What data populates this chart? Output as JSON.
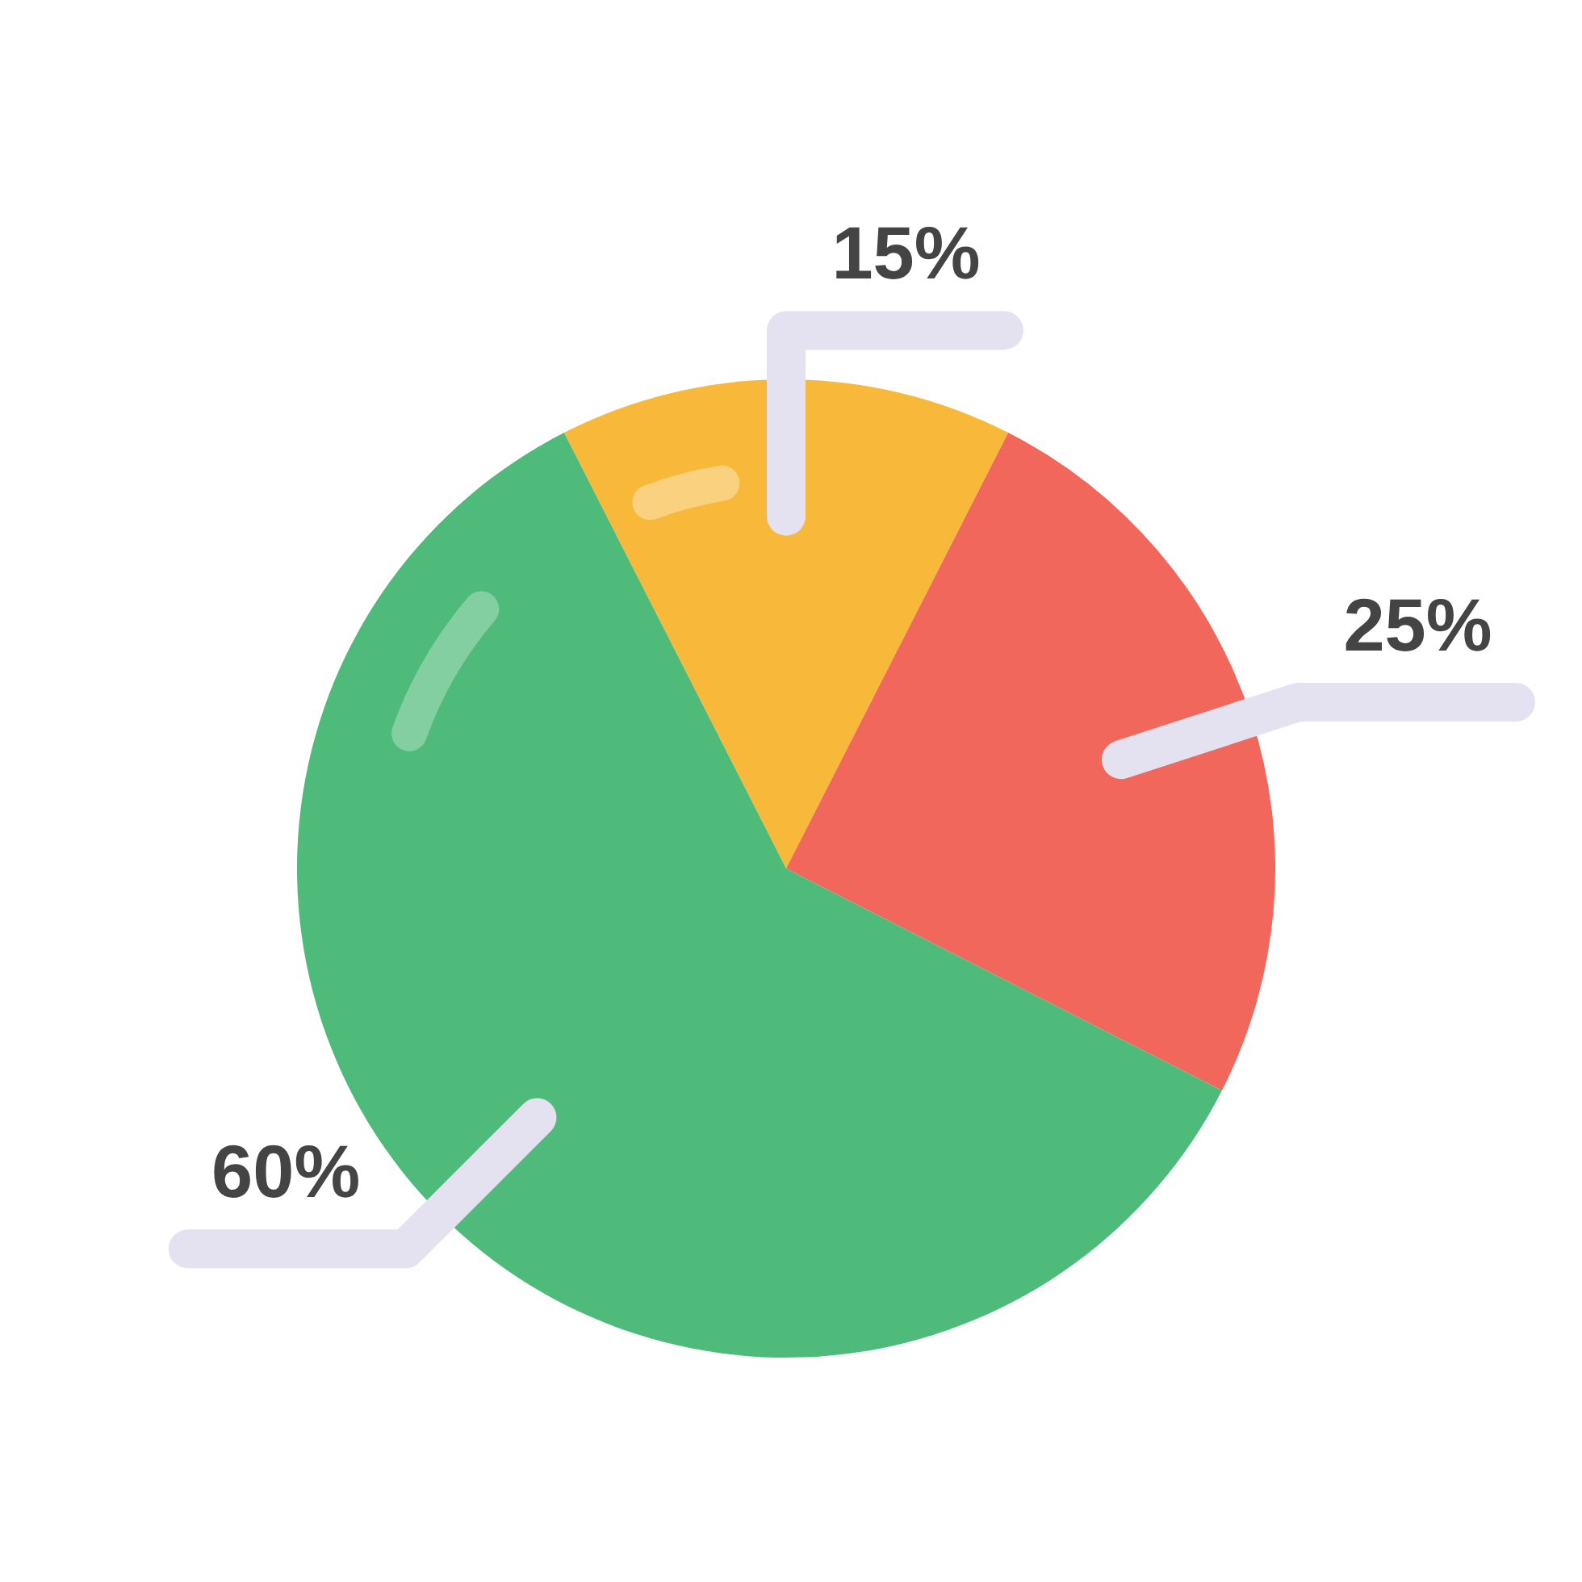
{
  "chart_data": {
    "type": "pie",
    "categories": [
      null,
      null,
      null
    ],
    "values": [
      15,
      25,
      60
    ],
    "colors": [
      "#f8b93a",
      "#f1675c",
      "#4fbb7a"
    ],
    "value_labels": [
      "15%",
      "25%",
      "60%"
    ]
  }
}
